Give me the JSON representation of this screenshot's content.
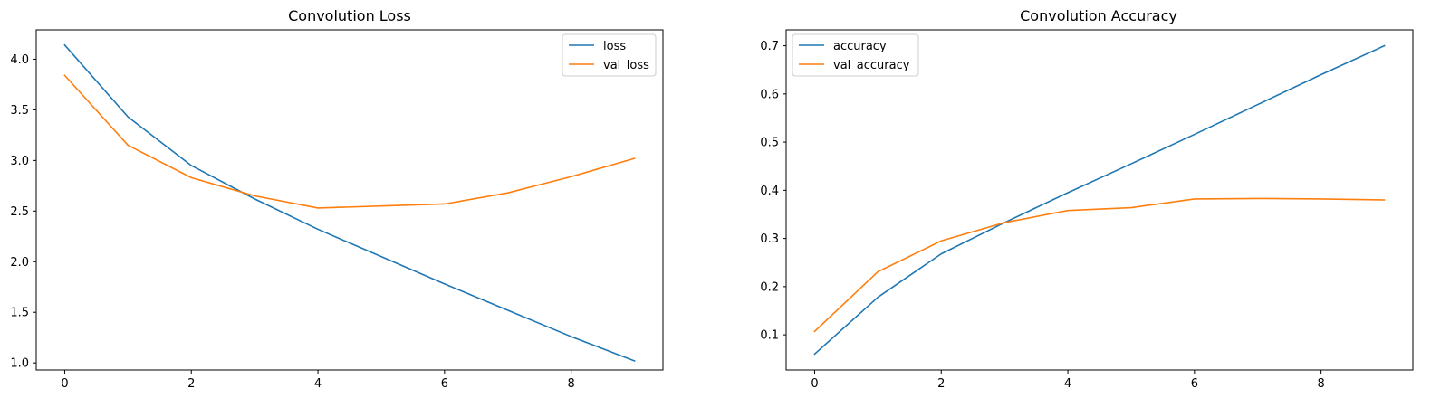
{
  "chart_data": [
    {
      "type": "line",
      "title": "Convolution Loss",
      "xlabel": "",
      "ylabel": "",
      "x": [
        0,
        1,
        2,
        3,
        4,
        5,
        6,
        7,
        8,
        9
      ],
      "xlim": [
        -0.45,
        9.45
      ],
      "ylim": [
        0.93,
        4.29
      ],
      "xticks": [
        0,
        2,
        4,
        6,
        8
      ],
      "xtick_labels": [
        "0",
        "2",
        "4",
        "6",
        "8"
      ],
      "yticks": [
        1.0,
        1.5,
        2.0,
        2.5,
        3.0,
        3.5,
        4.0
      ],
      "ytick_labels": [
        "1.0",
        "1.5",
        "2.0",
        "2.5",
        "3.0",
        "3.5",
        "4.0"
      ],
      "grid": false,
      "legend_position": "top-right",
      "series": [
        {
          "name": "loss",
          "color": "#1f77b4",
          "values": [
            4.14,
            3.43,
            2.95,
            2.62,
            2.32,
            2.05,
            1.78,
            1.52,
            1.26,
            1.02
          ]
        },
        {
          "name": "val_loss",
          "color": "#ff7f0e",
          "values": [
            3.84,
            3.15,
            2.83,
            2.65,
            2.53,
            2.55,
            2.57,
            2.68,
            2.84,
            3.02
          ]
        }
      ]
    },
    {
      "type": "line",
      "title": "Convolution Accuracy",
      "xlabel": "",
      "ylabel": "",
      "x": [
        0,
        1,
        2,
        3,
        4,
        5,
        6,
        7,
        8,
        9
      ],
      "xlim": [
        -0.45,
        9.45
      ],
      "ylim": [
        0.027,
        0.733
      ],
      "xticks": [
        0,
        2,
        4,
        6,
        8
      ],
      "xtick_labels": [
        "0",
        "2",
        "4",
        "6",
        "8"
      ],
      "yticks": [
        0.1,
        0.2,
        0.3,
        0.4,
        0.5,
        0.6,
        0.7
      ],
      "ytick_labels": [
        "0.1",
        "0.2",
        "0.3",
        "0.4",
        "0.5",
        "0.6",
        "0.7"
      ],
      "grid": false,
      "legend_position": "top-left",
      "series": [
        {
          "name": "accuracy",
          "color": "#1f77b4",
          "values": [
            0.06,
            0.178,
            0.268,
            0.333,
            0.395,
            0.455,
            0.516,
            0.578,
            0.64,
            0.7
          ]
        },
        {
          "name": "val_accuracy",
          "color": "#ff7f0e",
          "values": [
            0.107,
            0.231,
            0.295,
            0.333,
            0.358,
            0.364,
            0.382,
            0.383,
            0.382,
            0.38
          ]
        }
      ]
    }
  ]
}
